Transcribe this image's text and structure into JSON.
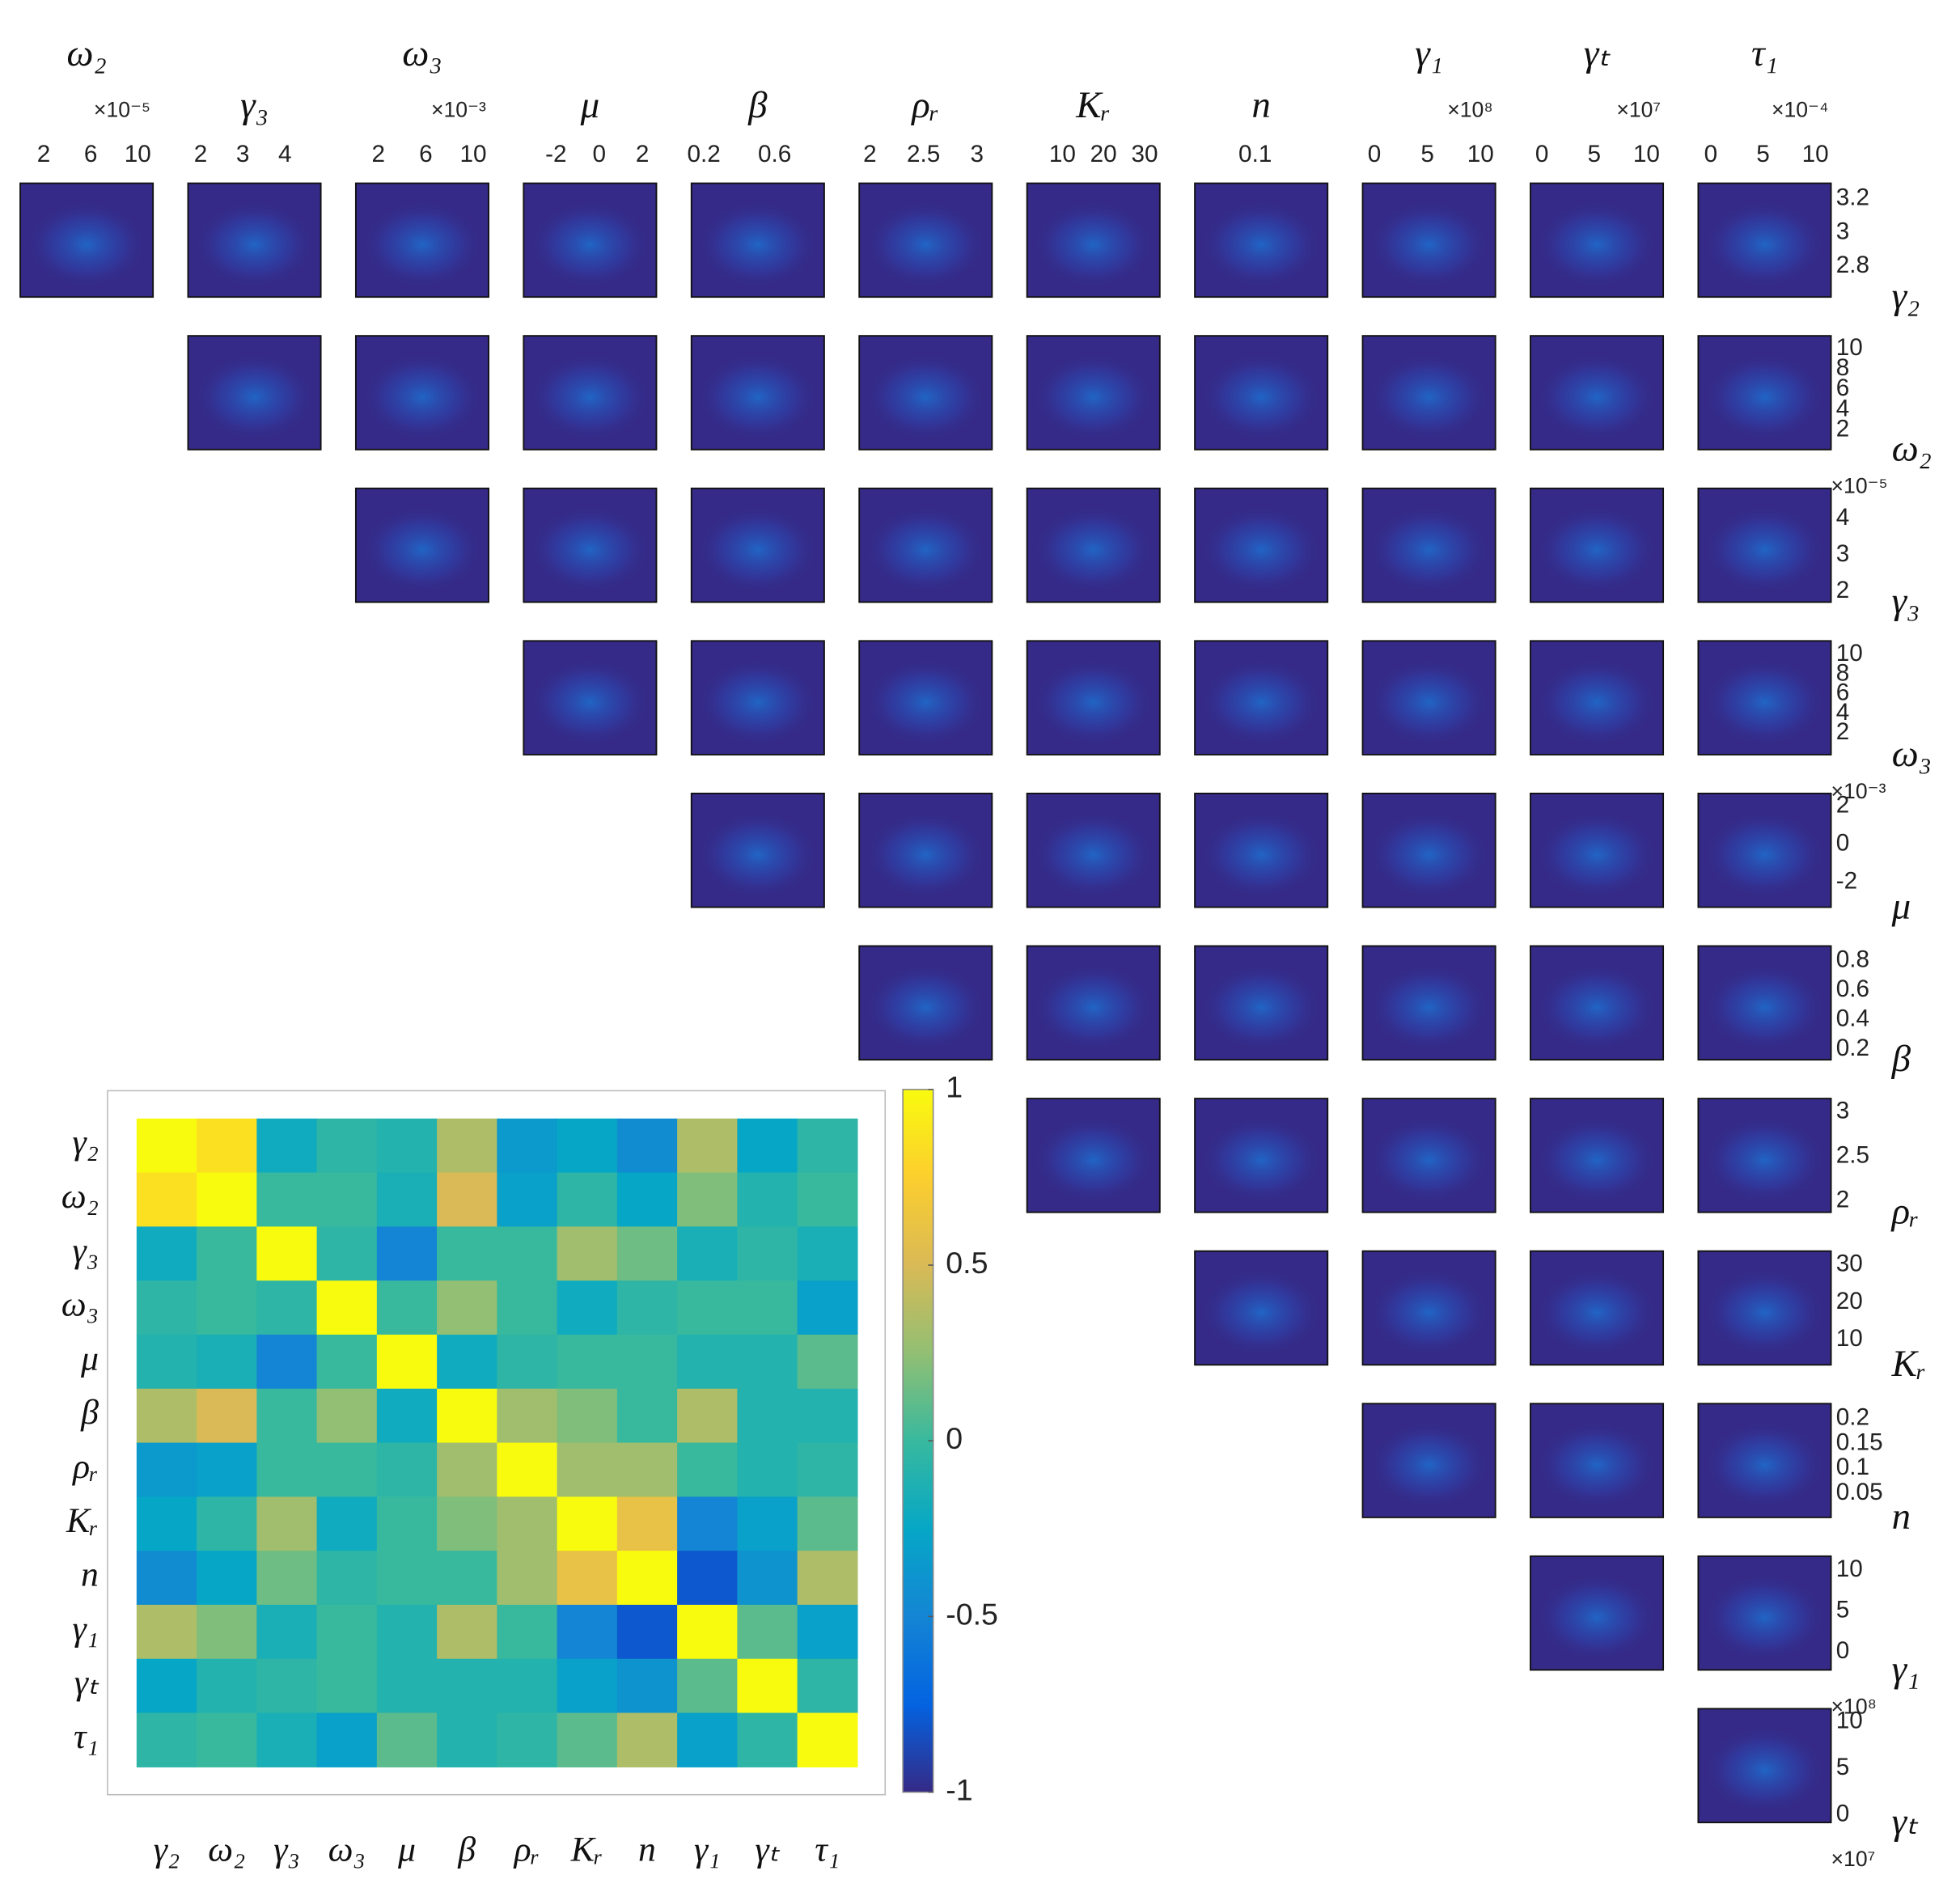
{
  "chart_data": [
    {
      "type": "pairs",
      "columns": [
        {
          "label": "ω₂",
          "multiplier": "×10⁻⁵",
          "xlim": [
            0,
            11.3
          ],
          "xticks": [
            2,
            6,
            10
          ]
        },
        {
          "label": "γ₃",
          "xlim": [
            1.7,
            4.85
          ],
          "xticks": [
            2,
            3,
            4
          ]
        },
        {
          "label": "ω₃",
          "multiplier": "×10⁻³",
          "xlim": [
            0.1,
            11.3
          ],
          "xticks": [
            2,
            6,
            10
          ]
        },
        {
          "label": "μ",
          "xlim": [
            -3.5,
            2.65
          ],
          "xticks": [
            -2,
            0,
            2
          ]
        },
        {
          "label": "β",
          "xlim": [
            0.13,
            0.88
          ],
          "xticks": [
            0.2,
            0.6
          ]
        },
        {
          "label": "ρᵣ",
          "xlim": [
            1.9,
            3.14
          ],
          "xticks": [
            2,
            2.5,
            3
          ]
        },
        {
          "label": "Kᵣ",
          "xlim": [
            1.4,
            33.7
          ],
          "xticks": [
            10,
            20,
            30
          ]
        },
        {
          "label": "n",
          "xlim": [
            0,
            0.22
          ],
          "xticks": [
            0.1
          ]
        },
        {
          "label": "γ₁",
          "multiplier": "×10⁸",
          "xlim": [
            -1.1,
            11.4
          ],
          "xticks": [
            0,
            5,
            10
          ]
        },
        {
          "label": "γₜ",
          "multiplier": "×10⁷",
          "xlim": [
            -1.1,
            11.6
          ],
          "xticks": [
            0,
            5,
            10
          ]
        },
        {
          "label": "τ₁",
          "multiplier": "×10⁻⁴",
          "xlim": [
            -1.2,
            11.5
          ],
          "xticks": [
            0,
            5,
            10
          ]
        }
      ],
      "rows": [
        {
          "label": "γ₂",
          "ylim": [
            2.62,
            3.29
          ],
          "yticks": [
            3.2,
            3,
            2.8
          ]
        },
        {
          "label": "ω₂",
          "multiplier": "×10⁻⁵",
          "ylim": [
            0.1,
            11.25
          ],
          "yticks": [
            10,
            8,
            6,
            4,
            2
          ]
        },
        {
          "label": "γ₃",
          "ylim": [
            1.7,
            4.84
          ],
          "yticks": [
            4,
            3,
            2
          ]
        },
        {
          "label": "ω₃",
          "multiplier": "×10⁻³",
          "ylim": [
            -0.2,
            11.4
          ],
          "yticks": [
            10,
            8,
            6,
            4,
            2
          ]
        },
        {
          "label": "μ",
          "ylim": [
            -3.3,
            2.67
          ],
          "yticks": [
            2,
            0,
            -2
          ]
        },
        {
          "label": "β",
          "ylim": [
            0.13,
            0.9
          ],
          "yticks": [
            0.8,
            0.6,
            0.4,
            0.2
          ]
        },
        {
          "label": "ρᵣ",
          "ylim": [
            1.87,
            3.15
          ],
          "yticks": [
            3,
            2.5,
            2
          ]
        },
        {
          "label": "Kᵣ",
          "ylim": [
            3.3,
            33.7
          ],
          "yticks": [
            30,
            20,
            10
          ]
        },
        {
          "label": "n",
          "ylim": [
            0.0017,
            0.23
          ],
          "yticks": [
            0.2,
            0.15,
            0.1,
            0.05
          ]
        },
        {
          "label": "γ₁",
          "multiplier": "×10⁸",
          "ylim": [
            -2.2,
            11.7
          ],
          "yticks": [
            10,
            5,
            0
          ]
        },
        {
          "label": "γₜ",
          "multiplier": "×10⁷",
          "ylim": [
            -0.8,
            11.4
          ],
          "yticks": [
            10,
            5,
            0
          ]
        }
      ]
    },
    {
      "type": "heatmap",
      "categories": [
        "γ₂",
        "ω₂",
        "γ₃",
        "ω₃",
        "μ",
        "β",
        "ρᵣ",
        "Kᵣ",
        "n",
        "γ₁",
        "γₜ",
        "τ₁"
      ],
      "values": [
        [
          1,
          0.85,
          -0.2,
          -0.05,
          -0.1,
          0.35,
          -0.35,
          -0.25,
          -0.45,
          0.35,
          -0.25,
          -0.05
        ],
        [
          0.85,
          1,
          0,
          0,
          -0.15,
          0.5,
          -0.3,
          -0.05,
          -0.25,
          0.2,
          -0.1,
          0
        ],
        [
          -0.2,
          0,
          1,
          -0.05,
          -0.5,
          0,
          0,
          0.3,
          0.15,
          -0.15,
          -0.05,
          -0.15
        ],
        [
          -0.05,
          0,
          -0.05,
          1,
          0,
          0.25,
          0,
          -0.2,
          -0.05,
          0,
          0,
          -0.3
        ],
        [
          -0.1,
          -0.15,
          -0.5,
          0,
          1,
          -0.2,
          -0.05,
          0,
          0,
          -0.1,
          -0.1,
          0.1
        ],
        [
          0.35,
          0.5,
          0,
          0.25,
          -0.2,
          1,
          0.3,
          0.2,
          0,
          0.35,
          -0.1,
          -0.1
        ],
        [
          -0.35,
          -0.3,
          0,
          0,
          -0.05,
          0.3,
          1,
          0.3,
          0.3,
          0,
          -0.1,
          -0.05
        ],
        [
          -0.25,
          -0.05,
          0.3,
          -0.2,
          0,
          0.2,
          0.3,
          1,
          0.6,
          -0.5,
          -0.3,
          0.1
        ],
        [
          -0.45,
          -0.25,
          0.15,
          -0.05,
          0,
          0,
          0.3,
          0.6,
          1,
          -0.8,
          -0.4,
          0.35
        ],
        [
          0.35,
          0.2,
          -0.15,
          0,
          -0.1,
          0.35,
          0,
          -0.5,
          -0.8,
          1,
          0.1,
          -0.3
        ],
        [
          -0.25,
          -0.1,
          -0.05,
          0,
          -0.1,
          -0.1,
          -0.1,
          -0.3,
          -0.4,
          0.1,
          1,
          -0.05
        ],
        [
          -0.05,
          0,
          -0.15,
          -0.3,
          0.1,
          -0.1,
          -0.05,
          0.1,
          0.35,
          -0.3,
          -0.05,
          1
        ]
      ],
      "zlim": [
        -1,
        1
      ],
      "colorbar_ticks": [
        -1,
        -0.5,
        0,
        0.5,
        1
      ],
      "colormap": "parula"
    }
  ]
}
